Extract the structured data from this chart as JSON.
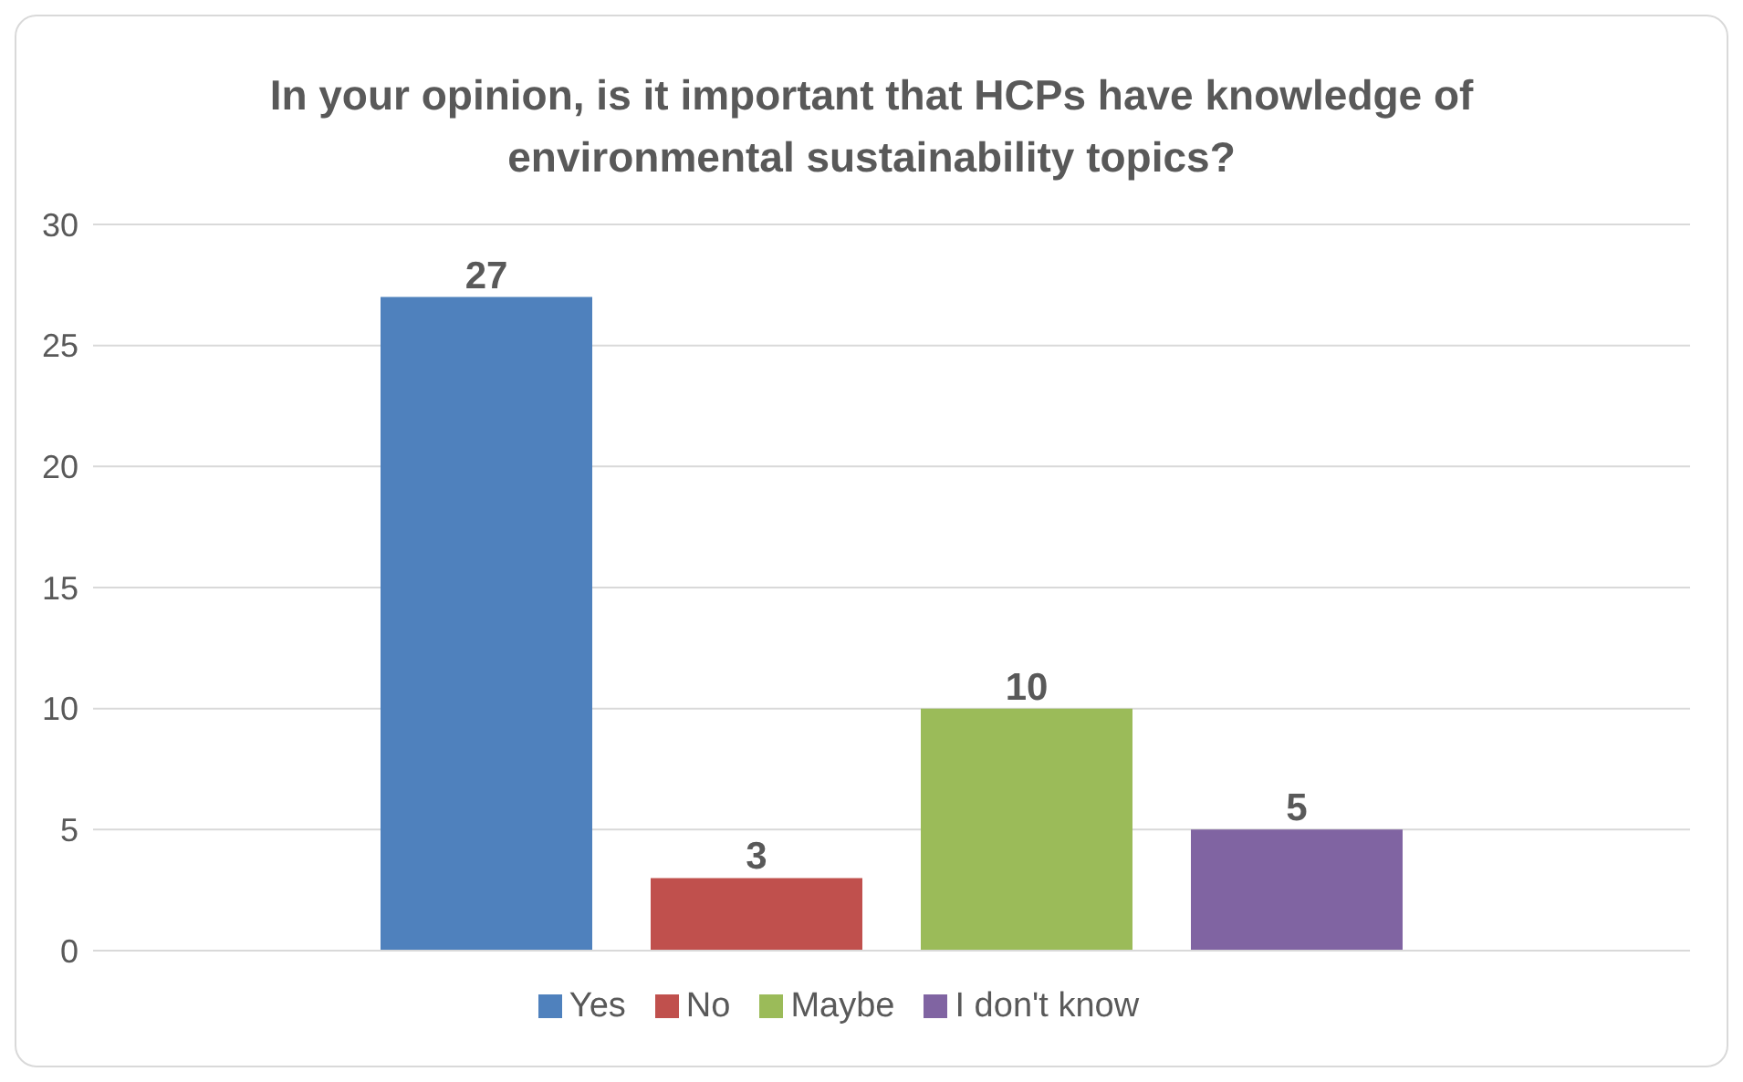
{
  "chart_data": {
    "type": "bar",
    "title": "In your opinion, is it important that HCPs have knowledge of environmental sustainability topics?",
    "categories": [
      null
    ],
    "series": [
      {
        "name": "Yes",
        "color": "#4f81bd",
        "values": [
          27
        ]
      },
      {
        "name": "No",
        "color": "#c0504d",
        "values": [
          3
        ]
      },
      {
        "name": "Maybe",
        "color": "#9bbb59",
        "values": [
          10
        ]
      },
      {
        "name": "I don't know",
        "color": "#8064a2",
        "values": [
          5
        ]
      }
    ],
    "ylim": [
      0,
      30
    ],
    "yticks": [
      0,
      5,
      10,
      15,
      20,
      25,
      30
    ],
    "grid": "y",
    "legend": "bottom",
    "data_labels": true
  }
}
